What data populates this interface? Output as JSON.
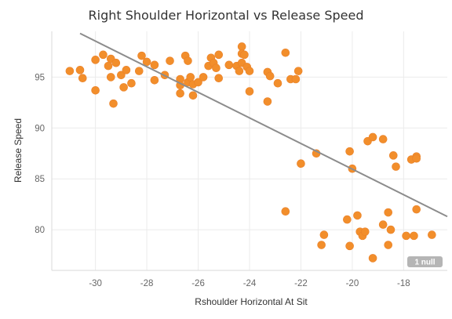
{
  "chart_data": {
    "type": "scatter",
    "title": "Right Shoulder Horizontal vs Release Speed",
    "xlabel": "Rshoulder Horizontal At Sit",
    "ylabel": "Release Speed",
    "xlim": [
      -31.7,
      -16.3
    ],
    "ylim": [
      76.0,
      99.5
    ],
    "xticks": [
      -30,
      -28,
      -26,
      -24,
      -22,
      -20,
      -18
    ],
    "xtick_labels": [
      "-30",
      "-28",
      "-26",
      "-24",
      "-22",
      "-20",
      "-18"
    ],
    "yticks": [
      80,
      85,
      90,
      95
    ],
    "ytick_labels": [
      "80",
      "85",
      "90",
      "95"
    ],
    "grid": true,
    "trend_line": {
      "x": [
        -30.6,
        -16.3
      ],
      "y": [
        99.3,
        81.3
      ]
    },
    "null_badge": "1 null",
    "marker_color": "#f28e2b",
    "trend_color": "#8c8c8c",
    "points": [
      {
        "x": -31.0,
        "y": 95.6
      },
      {
        "x": -30.6,
        "y": 95.7
      },
      {
        "x": -30.5,
        "y": 94.9
      },
      {
        "x": -30.0,
        "y": 96.7
      },
      {
        "x": -30.0,
        "y": 93.7
      },
      {
        "x": -29.7,
        "y": 97.2
      },
      {
        "x": -29.5,
        "y": 96.1
      },
      {
        "x": -29.4,
        "y": 96.8
      },
      {
        "x": -29.4,
        "y": 95.0
      },
      {
        "x": -29.3,
        "y": 92.4
      },
      {
        "x": -29.2,
        "y": 96.4
      },
      {
        "x": -29.0,
        "y": 95.2
      },
      {
        "x": -28.9,
        "y": 94.0
      },
      {
        "x": -28.8,
        "y": 95.7
      },
      {
        "x": -28.6,
        "y": 94.4
      },
      {
        "x": -28.3,
        "y": 95.6
      },
      {
        "x": -28.2,
        "y": 97.1
      },
      {
        "x": -28.0,
        "y": 96.5
      },
      {
        "x": -27.7,
        "y": 96.2
      },
      {
        "x": -27.7,
        "y": 94.7
      },
      {
        "x": -27.3,
        "y": 95.2
      },
      {
        "x": -27.1,
        "y": 96.6
      },
      {
        "x": -26.7,
        "y": 94.8
      },
      {
        "x": -26.7,
        "y": 94.2
      },
      {
        "x": -26.7,
        "y": 93.4
      },
      {
        "x": -26.5,
        "y": 97.1
      },
      {
        "x": -26.4,
        "y": 96.6
      },
      {
        "x": -26.4,
        "y": 94.5
      },
      {
        "x": -26.3,
        "y": 95.0
      },
      {
        "x": -26.2,
        "y": 94.3
      },
      {
        "x": -26.2,
        "y": 93.2
      },
      {
        "x": -26.0,
        "y": 94.5
      },
      {
        "x": -25.8,
        "y": 95.0
      },
      {
        "x": -25.6,
        "y": 96.1
      },
      {
        "x": -25.5,
        "y": 96.9
      },
      {
        "x": -25.4,
        "y": 96.4
      },
      {
        "x": -25.3,
        "y": 95.9
      },
      {
        "x": -25.2,
        "y": 97.2
      },
      {
        "x": -25.2,
        "y": 94.9
      },
      {
        "x": -24.8,
        "y": 96.2
      },
      {
        "x": -24.5,
        "y": 96.1
      },
      {
        "x": -24.4,
        "y": 95.6
      },
      {
        "x": -24.3,
        "y": 98.0
      },
      {
        "x": -24.3,
        "y": 97.3
      },
      {
        "x": -24.3,
        "y": 96.4
      },
      {
        "x": -24.2,
        "y": 97.2
      },
      {
        "x": -24.1,
        "y": 96.0
      },
      {
        "x": -24.0,
        "y": 95.6
      },
      {
        "x": -24.0,
        "y": 93.6
      },
      {
        "x": -23.3,
        "y": 95.5
      },
      {
        "x": -23.3,
        "y": 92.6
      },
      {
        "x": -23.2,
        "y": 95.1
      },
      {
        "x": -22.9,
        "y": 94.4
      },
      {
        "x": -22.6,
        "y": 97.4
      },
      {
        "x": -22.6,
        "y": 81.8
      },
      {
        "x": -22.4,
        "y": 94.8
      },
      {
        "x": -22.2,
        "y": 94.8
      },
      {
        "x": -22.1,
        "y": 95.6
      },
      {
        "x": -22.0,
        "y": 86.5
      },
      {
        "x": -21.4,
        "y": 87.5
      },
      {
        "x": -21.2,
        "y": 78.5
      },
      {
        "x": -21.1,
        "y": 79.5
      },
      {
        "x": -20.2,
        "y": 81.0
      },
      {
        "x": -20.1,
        "y": 87.7
      },
      {
        "x": -20.1,
        "y": 78.4
      },
      {
        "x": -20.0,
        "y": 86.0
      },
      {
        "x": -19.8,
        "y": 81.4
      },
      {
        "x": -19.7,
        "y": 79.8
      },
      {
        "x": -19.6,
        "y": 79.4
      },
      {
        "x": -19.5,
        "y": 79.8
      },
      {
        "x": -19.4,
        "y": 88.7
      },
      {
        "x": -19.2,
        "y": 89.1
      },
      {
        "x": -19.2,
        "y": 77.2
      },
      {
        "x": -18.8,
        "y": 88.9
      },
      {
        "x": -18.8,
        "y": 80.5
      },
      {
        "x": -18.6,
        "y": 78.5
      },
      {
        "x": -18.6,
        "y": 81.7
      },
      {
        "x": -18.5,
        "y": 80.0
      },
      {
        "x": -18.4,
        "y": 87.3
      },
      {
        "x": -18.3,
        "y": 86.2
      },
      {
        "x": -17.9,
        "y": 79.4
      },
      {
        "x": -17.7,
        "y": 86.9
      },
      {
        "x": -17.6,
        "y": 79.4
      },
      {
        "x": -17.5,
        "y": 87.2
      },
      {
        "x": -17.5,
        "y": 87.0
      },
      {
        "x": -17.5,
        "y": 82.0
      },
      {
        "x": -16.9,
        "y": 79.5
      }
    ]
  }
}
